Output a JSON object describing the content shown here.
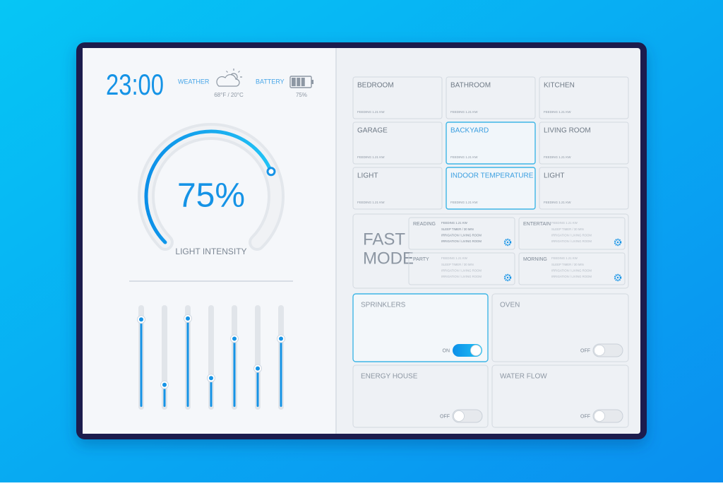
{
  "status": {
    "time": "23:00",
    "weather_label": "WEATHER",
    "weather": "68°F / 20°C",
    "battery_label": "BATTERY",
    "battery": {
      "value": 75,
      "label": "75%"
    }
  },
  "gauge": {
    "value": 75,
    "label": "75%",
    "title": "LIGHT INTENSITY"
  },
  "sliders": [
    91,
    23,
    92,
    30,
    71,
    40,
    71
  ],
  "rooms": [
    {
      "name": "BEDROOM",
      "detail": "FEEDING 1.21 KW",
      "active": false
    },
    {
      "name": "BATHROOM",
      "detail": "FEEDING 1.21 KW",
      "active": false
    },
    {
      "name": "KITCHEN",
      "detail": "FEEDING 1.21 KW",
      "active": false
    },
    {
      "name": "GARAGE",
      "detail": "FEEDING 1.21 KW",
      "active": false
    },
    {
      "name": "BACKYARD",
      "detail": "FEEDING 1.21 KW",
      "active": true
    },
    {
      "name": "LIVING ROOM",
      "detail": "FEEDING 1.21 KW",
      "active": false
    },
    {
      "name": "LIGHT",
      "detail": "FEEDING 1.21 KW",
      "active": false
    },
    {
      "name": "INDOOR TEMPERATURE",
      "detail": "FEEDING 1.21 KW",
      "active": true
    },
    {
      "name": "LIGHT",
      "detail": "FEEDING 1.21 KW",
      "active": false
    }
  ],
  "fast_mode": {
    "title": [
      "FAST",
      "MODE"
    ],
    "modes": [
      {
        "name": "READING",
        "lines": [
          "FEEDING 1.21 KW",
          "SLEEP TIMER / 30 MIN",
          "IRRIGATION / LIVING ROOM",
          "IRRIGATION / LIVING ROOM"
        ]
      },
      {
        "name": "ENTERTAIN",
        "lines": [
          "FEEDING 1.21 KW",
          "SLEEP TIMER / 30 MIN",
          "IRRIGATION / LIVING ROOM",
          "IRRIGATION / LIVING ROOM"
        ]
      },
      {
        "name": "PARTY",
        "lines": [
          "FEEDING 1.21 KW",
          "SLEEP TIMER / 30 MIN",
          "IRRIGATION / LIVING ROOM",
          "IRRIGATION / LIVING ROOM"
        ]
      },
      {
        "name": "MORNING",
        "lines": [
          "FEEDING 1.21 KW",
          "SLEEP TIMER / 30 MIN",
          "IRRIGATION / LIVING ROOM",
          "IRRIGATION / LIVING ROOM"
        ]
      }
    ]
  },
  "switches": [
    {
      "name": "SPRINKLERS",
      "on": true,
      "state": "ON"
    },
    {
      "name": "OVEN",
      "on": false,
      "state": "OFF"
    },
    {
      "name": "ENERGY HOUSE",
      "on": false,
      "state": "OFF"
    },
    {
      "name": "WATER FLOW",
      "on": false,
      "state": "OFF"
    }
  ]
}
